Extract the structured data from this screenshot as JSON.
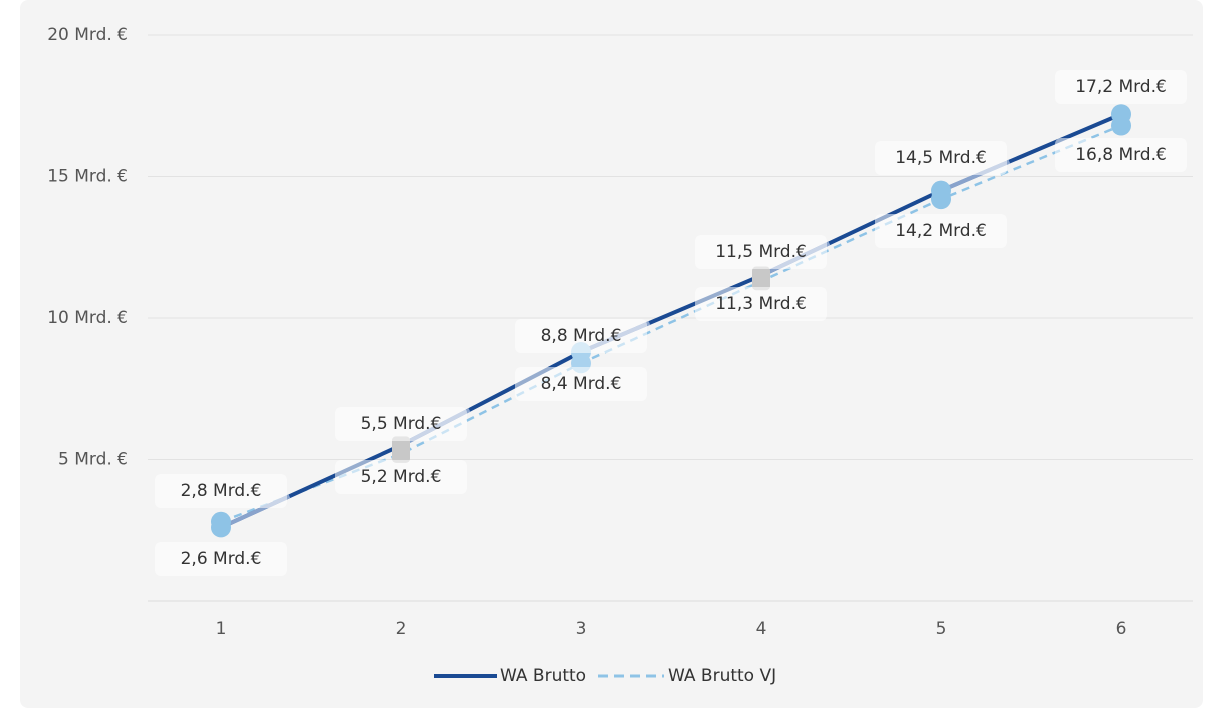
{
  "chart_data": {
    "type": "line",
    "categories": [
      "1",
      "2",
      "3",
      "4",
      "5",
      "6"
    ],
    "y_ticks": [
      {
        "value": 5,
        "label": "5 Mrd. €"
      },
      {
        "value": 10,
        "label": "10 Mrd. €"
      },
      {
        "value": 15,
        "label": "15 Mrd. €"
      },
      {
        "value": 20,
        "label": "20 Mrd. €"
      }
    ],
    "ylim": [
      0,
      20
    ],
    "grid": true,
    "legend_position": "bottom",
    "series": [
      {
        "name": "WA Brutto",
        "values": [
          2.6,
          5.5,
          8.8,
          11.5,
          14.5,
          17.2
        ],
        "labels": [
          "2,6 Mrd.€",
          "5,5 Mrd.€",
          "8,8 Mrd.€",
          "11,5 Mrd.€",
          "14,5 Mrd.€",
          "17,2 Mrd.€"
        ],
        "color": "#1a4a93",
        "dash": "solid"
      },
      {
        "name": "WA Brutto VJ",
        "values": [
          2.8,
          5.2,
          8.4,
          11.3,
          14.2,
          16.8
        ],
        "labels": [
          "2,8 Mrd.€",
          "5,2 Mrd.€",
          "8,4 Mrd.€",
          "11,3 Mrd.€",
          "14,2 Mrd.€",
          "16,8 Mrd.€"
        ],
        "color": "#8ec3e6",
        "dash": "dashed"
      }
    ],
    "marker_colors": [
      "#8ec3e6",
      "#c8c8c8",
      "#a9d2ee",
      "#c8c8c8",
      "#8ec3e6",
      "#8ec3e6"
    ]
  }
}
